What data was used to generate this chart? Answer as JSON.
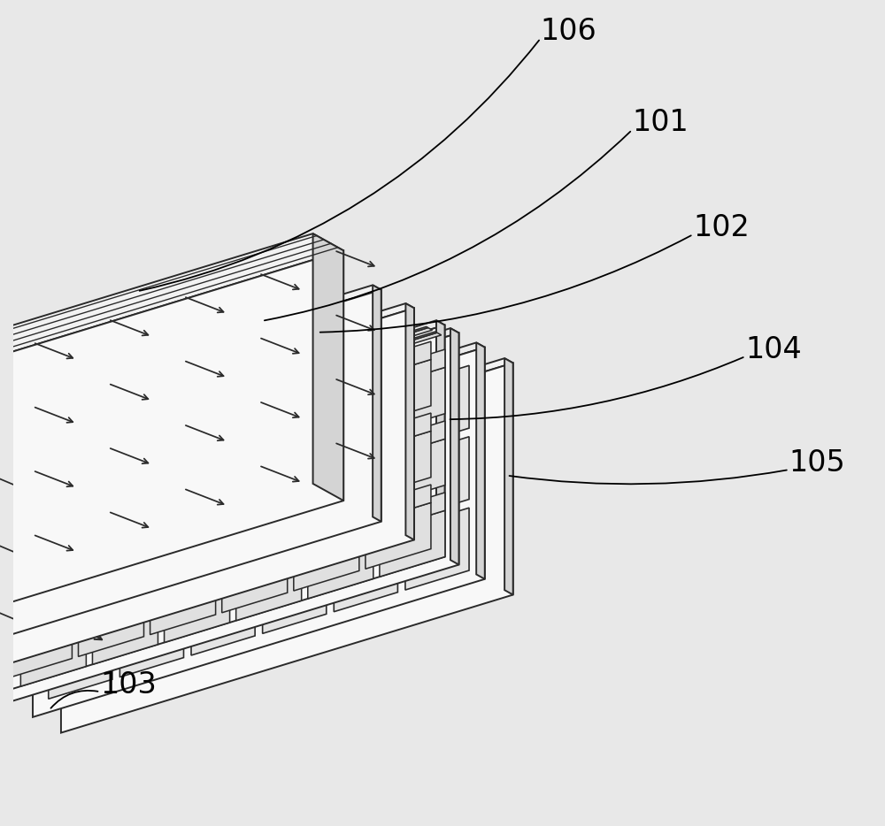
{
  "bg_color": "#e8e8e8",
  "line_color": "#2a2a2a",
  "face_white": "#f8f8f8",
  "face_light": "#ebebeb",
  "face_mid": "#d4d4d4",
  "face_dark": "#c0c0c0",
  "face_top": "#f2f2f2",
  "label_106": "106",
  "label_101": "101",
  "label_102": "102",
  "label_104": "104",
  "label_105": "105",
  "label_103": "103",
  "label_fontsize": 24,
  "lw": 1.4,
  "figw": 10.0,
  "figh": 9.34,
  "dpi": 100
}
